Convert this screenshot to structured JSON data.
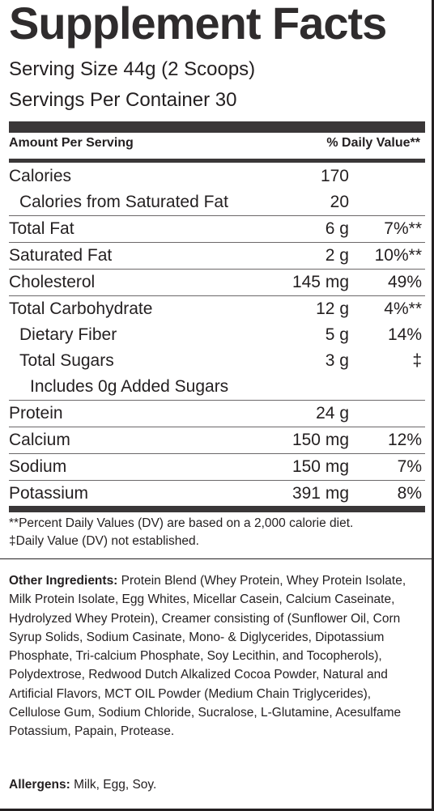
{
  "title": "Supplement Facts",
  "serving_size": "Serving Size 44g (2 Scoops)",
  "servings_per_container": "Servings Per Container  30",
  "header": {
    "amount_per_serving": "Amount Per Serving",
    "daily_value": "% Daily Value**"
  },
  "nutrients": [
    {
      "name": "Calories",
      "amount": "170",
      "dv": ""
    },
    {
      "name": "Calories from Saturated Fat",
      "amount": "20",
      "dv": ""
    },
    {
      "name": "Total Fat",
      "amount": "6 g",
      "dv": "7%**"
    },
    {
      "name": "Saturated Fat",
      "amount": "2 g",
      "dv": "10%**"
    },
    {
      "name": "Cholesterol",
      "amount": "145 mg",
      "dv": "49%"
    },
    {
      "name": "Total Carbohydrate",
      "amount": "12 g",
      "dv": "4%**"
    },
    {
      "name": "Dietary Fiber",
      "amount": "5 g",
      "dv": "14%"
    },
    {
      "name": "Total Sugars",
      "amount": "3 g",
      "dv": "‡"
    },
    {
      "name": "Includes 0g Added Sugars",
      "amount": "",
      "dv": ""
    },
    {
      "name": "Protein",
      "amount": "24 g",
      "dv": ""
    },
    {
      "name": "Calcium",
      "amount": "150 mg",
      "dv": "12%"
    },
    {
      "name": "Sodium",
      "amount": "150 mg",
      "dv": "7%"
    },
    {
      "name": "Potassium",
      "amount": "391 mg",
      "dv": "8%"
    }
  ],
  "footnotes": [
    "**Percent Daily Values (DV) are based on a 2,000 calorie diet.",
    "‡Daily Value (DV) not established."
  ],
  "other_ingredients": {
    "label": "Other Ingredients:",
    "text": " Protein Blend (Whey Protein, Whey Protein Isolate, Milk Protein Isolate, Egg Whites, Micellar Casein, Calcium Caseinate, Hydrolyzed Whey Protein), Creamer consisting of (Sunflower Oil, Corn Syrup Solids, Sodium Casinate, Mono- & Diglycerides, Dipotassium Phosphate, Tri-calcium Phosphate, Soy Lecithin, and Tocopherols), Polydextrose, Redwood Dutch Alkalized Cocoa Powder, Natural and Artificial Flavors, MCT OIL Powder (Medium Chain Triglycerides), Cellulose Gum, Sodium Chloride, Sucralose, L-Glutamine, Acesulfame Potassium, Papain, Protease."
  },
  "allergens": {
    "label": "Allergens:",
    "text": " Milk, Egg, Soy."
  }
}
